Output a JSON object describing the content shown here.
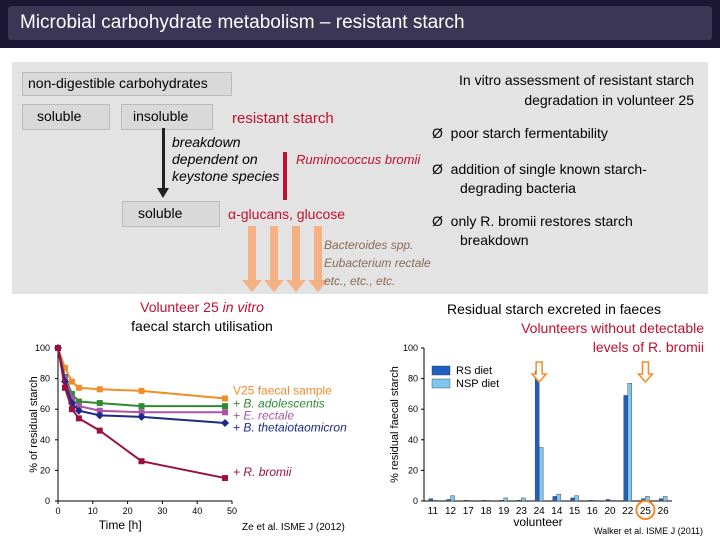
{
  "title": "Microbial carbohydrate metabolism – resistant starch",
  "diagram": {
    "non_digestible": "non-digestible carbohydrates",
    "soluble_top": "soluble",
    "insoluble": "insoluble",
    "resistant_starch": "resistant starch",
    "breakdown_line1": "breakdown",
    "breakdown_line2": "dependent on",
    "breakdown_line3": "keystone species",
    "ruminococcus": "Ruminococcus bromii",
    "soluble_bottom": "soluble",
    "glucans": "α-glucans, glucose",
    "bacteroides": "Bacteroides spp.",
    "eubacterium": "Eubacterium rectale",
    "etc": "etc., etc., etc."
  },
  "invitro": {
    "heading_line1": "In vitro assessment of resistant starch",
    "heading_line2": "degradation in volunteer 25",
    "bullets": [
      "poor starch fermentability",
      "addition of single known starch-",
      "degrading bacteria",
      "only R. bromii restores starch",
      "breakdown"
    ],
    "bullet_symbol": "Ø"
  },
  "left_chart_heading": {
    "line1_a": "Volunteer 25 ",
    "line1_b": "in vitro",
    "line2": "faecal starch utilisation"
  },
  "right_chart_heading": {
    "line1": "Residual starch excreted in faeces",
    "line2": "Volunteers without detectable",
    "line3": "levels of R. bromii"
  },
  "citations": {
    "left": "Ze et al. ISME J (2012)",
    "right": "Walker et al. ISME J (2011)"
  },
  "chart_data": [
    {
      "type": "line",
      "ylabel": "% of residual starch",
      "xlabel": "Time [h]",
      "ylim": [
        0,
        100
      ],
      "xlim": [
        0,
        50
      ],
      "yticks": [
        0,
        20,
        40,
        60,
        80,
        100
      ],
      "xticks": [
        0,
        10,
        20,
        30,
        40,
        50
      ],
      "x": [
        0,
        2,
        4,
        6,
        12,
        24,
        48
      ],
      "series": [
        {
          "name": "V25 faecal sample",
          "color": "#f28c28",
          "values": [
            100,
            87,
            78,
            74,
            73,
            72,
            67
          ]
        },
        {
          "name": "+ B. adolescentis",
          "color": "#2e8b2e",
          "values": [
            100,
            81,
            70,
            65,
            64,
            62,
            62
          ]
        },
        {
          "name": "+ E. rectale",
          "color": "#a855a8",
          "values": [
            100,
            80,
            67,
            62,
            59,
            58,
            58
          ]
        },
        {
          "name": "+ B. thetaiotaomicron",
          "color": "#1b2a8a",
          "values": [
            100,
            78,
            64,
            59,
            56,
            55,
            51
          ]
        },
        {
          "name": "+ R. bromii",
          "color": "#9b1040",
          "values": [
            100,
            74,
            60,
            54,
            46,
            26,
            15
          ]
        }
      ]
    },
    {
      "type": "bar",
      "ylabel": "% residual faecal starch",
      "xlabel": "volunteer",
      "ylim": [
        0,
        100
      ],
      "yticks": [
        0,
        20,
        40,
        60,
        80,
        100
      ],
      "categories": [
        "11",
        "12",
        "17",
        "18",
        "19",
        "23",
        "24",
        "14",
        "15",
        "16",
        "20",
        "22",
        "25",
        "26"
      ],
      "series": [
        {
          "name": "RS diet",
          "color": "#1f5fbf",
          "values": [
            1.5,
            1,
            0.5,
            0.5,
            0.5,
            0.5,
            85,
            3,
            2,
            0.5,
            1,
            69,
            1.5,
            1.5
          ]
        },
        {
          "name": "NSP diet",
          "color": "#7ec8f0",
          "values": [
            0.5,
            3.5,
            0.5,
            0.5,
            2,
            2,
            35,
            4.5,
            3.5,
            0.5,
            0.5,
            77,
            3,
            3
          ]
        }
      ],
      "highlight": "25"
    }
  ]
}
